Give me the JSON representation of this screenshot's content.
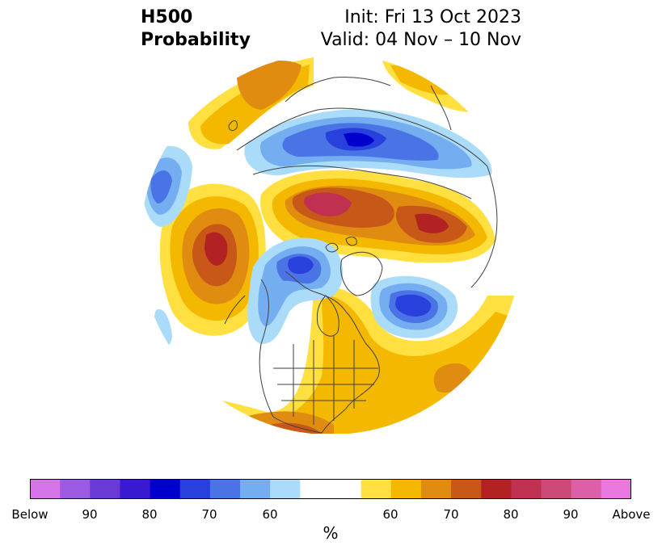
{
  "header": {
    "title_line1": "H500",
    "title_line2": "Probability",
    "init_text": "Init: Fri 13 Oct 2023",
    "valid_text": "Valid: 04 Nov – 10 Nov"
  },
  "colors": {
    "below_extreme": "#d575e8",
    "below_90": "#9c5ae0",
    "below_85": "#6a3ad6",
    "below_80": "#3a1ad0",
    "below_75": "#0000cc",
    "below_70": "#2840dc",
    "below_65": "#4a74e6",
    "below_60": "#74aef0",
    "below_55": "#aadcfa",
    "neutral": "#ffffff",
    "above_55": "#ffe040",
    "above_60": "#f5b800",
    "above_65": "#e08c10",
    "above_70": "#c85818",
    "above_75": "#b22222",
    "above_80": "#c03050",
    "above_85": "#cc4a78",
    "above_90": "#dc60a8",
    "above_extreme": "#e878e0",
    "coastline": "#404040"
  },
  "colorbar": {
    "tick_labels": [
      "Below",
      "90",
      "80",
      "70",
      "60",
      "60",
      "70",
      "80",
      "90",
      "Above"
    ],
    "unit": "%"
  }
}
